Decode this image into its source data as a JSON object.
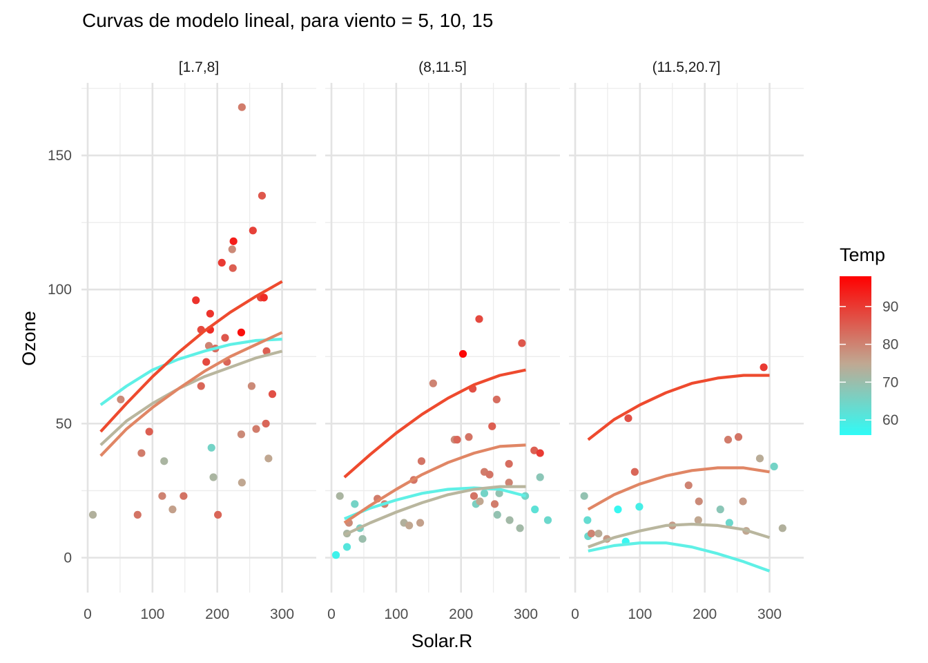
{
  "chart_data": {
    "type": "scatter",
    "title": "Curvas de modelo lineal, para viento = 5, 10, 15",
    "xlabel": "Solar.R",
    "ylabel": "Ozone",
    "xlim": [
      -5,
      340
    ],
    "ylim": [
      -12,
      176
    ],
    "x_ticks": [
      0,
      100,
      200,
      300
    ],
    "y_ticks": [
      0,
      50,
      100,
      150
    ],
    "grid": true,
    "legend": {
      "title": "Temp",
      "position": "right",
      "type": "colorbar",
      "range": [
        56,
        98
      ],
      "ticks": [
        60,
        70,
        80,
        90
      ],
      "colors": {
        "low": "#2ffbf6",
        "mid": "#c0a892",
        "high": "#ff0000"
      }
    },
    "panels": [
      {
        "label": "[1.7,8]",
        "points": [
          {
            "x": 8,
            "y": 16,
            "t": 73
          },
          {
            "x": 51,
            "y": 59,
            "t": 79
          },
          {
            "x": 77,
            "y": 16,
            "t": 82
          },
          {
            "x": 83,
            "y": 39,
            "t": 81
          },
          {
            "x": 95,
            "y": 47,
            "t": 85
          },
          {
            "x": 115,
            "y": 23,
            "t": 80
          },
          {
            "x": 118,
            "y": 36,
            "t": 72
          },
          {
            "x": 131,
            "y": 18,
            "t": 76
          },
          {
            "x": 148,
            "y": 23,
            "t": 82
          },
          {
            "x": 167,
            "y": 96,
            "t": 91
          },
          {
            "x": 175,
            "y": 85,
            "t": 88
          },
          {
            "x": 175,
            "y": 64,
            "t": 84
          },
          {
            "x": 183,
            "y": 73,
            "t": 88
          },
          {
            "x": 187,
            "y": 79,
            "t": 80
          },
          {
            "x": 189,
            "y": 85,
            "t": 92
          },
          {
            "x": 189,
            "y": 91,
            "t": 91
          },
          {
            "x": 191,
            "y": 41,
            "t": 65
          },
          {
            "x": 194,
            "y": 30,
            "t": 72
          },
          {
            "x": 197,
            "y": 78,
            "t": 83
          },
          {
            "x": 201,
            "y": 16,
            "t": 84
          },
          {
            "x": 207,
            "y": 110,
            "t": 90
          },
          {
            "x": 212,
            "y": 82,
            "t": 86
          },
          {
            "x": 215,
            "y": 73,
            "t": 84
          },
          {
            "x": 223,
            "y": 115,
            "t": 79
          },
          {
            "x": 224,
            "y": 108,
            "t": 85
          },
          {
            "x": 225,
            "y": 118,
            "t": 94
          },
          {
            "x": 237,
            "y": 84,
            "t": 96
          },
          {
            "x": 237,
            "y": 46,
            "t": 79
          },
          {
            "x": 238,
            "y": 168,
            "t": 81
          },
          {
            "x": 238,
            "y": 28,
            "t": 75
          },
          {
            "x": 253,
            "y": 64,
            "t": 79
          },
          {
            "x": 255,
            "y": 122,
            "t": 89
          },
          {
            "x": 260,
            "y": 48,
            "t": 81
          },
          {
            "x": 267,
            "y": 97,
            "t": 88
          },
          {
            "x": 269,
            "y": 135,
            "t": 86
          },
          {
            "x": 272,
            "y": 97,
            "t": 92
          },
          {
            "x": 275,
            "y": 50,
            "t": 84
          },
          {
            "x": 276,
            "y": 77,
            "t": 85
          },
          {
            "x": 279,
            "y": 37,
            "t": 75
          },
          {
            "x": 285,
            "y": 61,
            "t": 87
          }
        ],
        "curves": [
          {
            "name": "60",
            "x": [
              20,
              60,
              100,
              140,
              180,
              220,
              260,
              300
            ],
            "y": [
              57,
              64,
              70,
              74,
              77,
              79.5,
              81,
              81.5
            ]
          },
          {
            "name": "70",
            "x": [
              20,
              60,
              100,
              140,
              180,
              220,
              260,
              300
            ],
            "y": [
              42,
              51,
              57.5,
              63,
              67.5,
              71,
              74.5,
              77
            ]
          },
          {
            "name": "80",
            "x": [
              20,
              60,
              100,
              140,
              180,
              220,
              260,
              300
            ],
            "y": [
              38,
              48,
              56,
              63,
              69.5,
              75,
              79.5,
              84
            ]
          },
          {
            "name": "90",
            "x": [
              20,
              60,
              100,
              140,
              180,
              220,
              260,
              300
            ],
            "y": [
              47,
              57.5,
              67.5,
              76.5,
              84.5,
              91.5,
              97.5,
              103
            ]
          }
        ]
      },
      {
        "label": "(8,11.5]",
        "points": [
          {
            "x": 7,
            "y": 1,
            "t": 58
          },
          {
            "x": 13,
            "y": 23,
            "t": 72
          },
          {
            "x": 24,
            "y": 9,
            "t": 72
          },
          {
            "x": 24,
            "y": 4,
            "t": 61
          },
          {
            "x": 27,
            "y": 13,
            "t": 79
          },
          {
            "x": 36,
            "y": 20,
            "t": 65
          },
          {
            "x": 44,
            "y": 11,
            "t": 66
          },
          {
            "x": 48,
            "y": 7,
            "t": 70
          },
          {
            "x": 71,
            "y": 22,
            "t": 81
          },
          {
            "x": 82,
            "y": 20,
            "t": 80
          },
          {
            "x": 112,
            "y": 13,
            "t": 73
          },
          {
            "x": 120,
            "y": 12,
            "t": 75
          },
          {
            "x": 127,
            "y": 29,
            "t": 82
          },
          {
            "x": 137,
            "y": 13,
            "t": 76
          },
          {
            "x": 139,
            "y": 36,
            "t": 82
          },
          {
            "x": 157,
            "y": 65,
            "t": 80
          },
          {
            "x": 190,
            "y": 44,
            "t": 79
          },
          {
            "x": 194,
            "y": 44,
            "t": 84
          },
          {
            "x": 203,
            "y": 76,
            "t": 97
          },
          {
            "x": 212,
            "y": 45,
            "t": 82
          },
          {
            "x": 218,
            "y": 63,
            "t": 87
          },
          {
            "x": 220,
            "y": 23,
            "t": 82
          },
          {
            "x": 223,
            "y": 20,
            "t": 66
          },
          {
            "x": 228,
            "y": 89,
            "t": 88
          },
          {
            "x": 229,
            "y": 21,
            "t": 75
          },
          {
            "x": 236,
            "y": 24,
            "t": 65
          },
          {
            "x": 236,
            "y": 32,
            "t": 81
          },
          {
            "x": 244,
            "y": 31,
            "t": 82
          },
          {
            "x": 248,
            "y": 49,
            "t": 85
          },
          {
            "x": 252,
            "y": 20,
            "t": 81
          },
          {
            "x": 255,
            "y": 59,
            "t": 83
          },
          {
            "x": 256,
            "y": 16,
            "t": 69
          },
          {
            "x": 259,
            "y": 24,
            "t": 69
          },
          {
            "x": 274,
            "y": 35,
            "t": 83
          },
          {
            "x": 274,
            "y": 28,
            "t": 80
          },
          {
            "x": 275,
            "y": 14,
            "t": 71
          },
          {
            "x": 291,
            "y": 11,
            "t": 71
          },
          {
            "x": 294,
            "y": 80,
            "t": 86
          },
          {
            "x": 299,
            "y": 23,
            "t": 65
          },
          {
            "x": 313,
            "y": 40,
            "t": 85
          },
          {
            "x": 314,
            "y": 18,
            "t": 62
          },
          {
            "x": 322,
            "y": 39,
            "t": 90
          },
          {
            "x": 322,
            "y": 30,
            "t": 68
          },
          {
            "x": 334,
            "y": 14,
            "t": 64
          }
        ],
        "curves": [
          {
            "name": "60",
            "x": [
              20,
              60,
              100,
              140,
              180,
              220,
              260,
              300
            ],
            "y": [
              14.5,
              18.5,
              21.5,
              24,
              25.5,
              26,
              25.5,
              23
            ]
          },
          {
            "name": "70",
            "x": [
              20,
              60,
              100,
              140,
              180,
              220,
              260,
              300
            ],
            "y": [
              8.5,
              13,
              17,
              20.5,
              23.5,
              25.5,
              26.5,
              26.5
            ]
          },
          {
            "name": "80",
            "x": [
              20,
              60,
              100,
              140,
              180,
              220,
              260,
              300
            ],
            "y": [
              13,
              19.5,
              25.5,
              31,
              35.5,
              39,
              41.5,
              42
            ]
          },
          {
            "name": "90",
            "x": [
              20,
              60,
              100,
              140,
              180,
              220,
              260,
              300
            ],
            "y": [
              30,
              38.5,
              46.5,
              53.5,
              59.5,
              64.5,
              68,
              70
            ]
          }
        ]
      },
      {
        "label": "(11.5,20.7]",
        "points": [
          {
            "x": 14,
            "y": 23,
            "t": 69
          },
          {
            "x": 19,
            "y": 14,
            "t": 63
          },
          {
            "x": 20,
            "y": 8,
            "t": 64
          },
          {
            "x": 25,
            "y": 9,
            "t": 80
          },
          {
            "x": 36,
            "y": 9,
            "t": 74
          },
          {
            "x": 49,
            "y": 7,
            "t": 77
          },
          {
            "x": 66,
            "y": 18,
            "t": 57
          },
          {
            "x": 78,
            "y": 6,
            "t": 57
          },
          {
            "x": 82,
            "y": 52,
            "t": 87
          },
          {
            "x": 92,
            "y": 32,
            "t": 84
          },
          {
            "x": 99,
            "y": 19,
            "t": 59
          },
          {
            "x": 150,
            "y": 12,
            "t": 77
          },
          {
            "x": 175,
            "y": 27,
            "t": 80
          },
          {
            "x": 190,
            "y": 14,
            "t": 75
          },
          {
            "x": 191,
            "y": 21,
            "t": 79
          },
          {
            "x": 224,
            "y": 18,
            "t": 68
          },
          {
            "x": 236,
            "y": 44,
            "t": 81
          },
          {
            "x": 238,
            "y": 13,
            "t": 64
          },
          {
            "x": 252,
            "y": 45,
            "t": 82
          },
          {
            "x": 259,
            "y": 21,
            "t": 77
          },
          {
            "x": 264,
            "y": 10,
            "t": 75
          },
          {
            "x": 285,
            "y": 37,
            "t": 74
          },
          {
            "x": 291,
            "y": 71,
            "t": 90
          },
          {
            "x": 307,
            "y": 34,
            "t": 65
          },
          {
            "x": 320,
            "y": 11,
            "t": 73
          }
        ],
        "curves": [
          {
            "name": "60",
            "x": [
              20,
              60,
              100,
              140,
              180,
              220,
              260,
              300
            ],
            "y": [
              2.5,
              4.5,
              5.5,
              5.5,
              4,
              1.5,
              -1.5,
              -5
            ]
          },
          {
            "name": "70",
            "x": [
              20,
              60,
              100,
              140,
              180,
              220,
              260,
              300
            ],
            "y": [
              4,
              7.5,
              10,
              12,
              12.5,
              12,
              10.5,
              7.5
            ]
          },
          {
            "name": "80",
            "x": [
              20,
              60,
              100,
              140,
              180,
              220,
              260,
              300
            ],
            "y": [
              18,
              23.5,
              27.5,
              30.5,
              32.5,
              33.5,
              33.5,
              32
            ]
          },
          {
            "name": "90",
            "x": [
              20,
              60,
              100,
              140,
              180,
              220,
              260,
              300
            ],
            "y": [
              44,
              51.5,
              57,
              61.5,
              65,
              67,
              68,
              68
            ]
          }
        ]
      }
    ]
  }
}
